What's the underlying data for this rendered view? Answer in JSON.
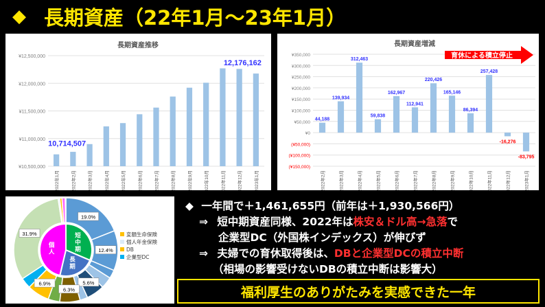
{
  "page": {
    "title_marker": "◆",
    "title": "長期資産（22年1月～23年1月）",
    "footer": "福利厚生のありがたみを実感できた一年"
  },
  "bullets": {
    "main_marker": "◆",
    "main": "一年間で＋1,461,655円（前年は＋1,930,566円）",
    "sub1_marker": "⇒",
    "sub1_line1_a": "短中期資産同様、2022年は",
    "sub1_line1_red": "株安＆ドル高→急落",
    "sub1_line1_b": "で",
    "sub1_line2": "企業型DC（外国株インデックス）が伸びず",
    "sub2_marker": "⇒",
    "sub2_line1_a": "夫婦での育休取得後は、",
    "sub2_line1_red": "DBと企業型DCの積立中断",
    "sub2_line2": "（相場の影響受けないDBの積立中断は影響大）"
  },
  "colors": {
    "bar": "#9dc3e6",
    "label_blue": "#3333ff",
    "label_red": "#ff0000",
    "arrow_red": "#ff0000",
    "title_yellow": "#ffe600",
    "pie_outer": [
      "#5b9bd5",
      "#5b9bd5",
      "#5b9bd5",
      "#9dc3e6",
      "#1f4e79",
      "#9dc3e6",
      "#7f6000",
      "#70ad47",
      "#ffc000",
      "#00b0f0",
      "#c5e0b4",
      "#ddebf7",
      "#ffc000",
      "#ff66ff",
      "#000000"
    ],
    "pie_inner": [
      "#00b050",
      "#4472c4",
      "#ff00ff"
    ]
  },
  "chart_data": [
    {
      "type": "bar",
      "title": "長期資産推移",
      "categories": [
        "2022年1月",
        "2022年2月",
        "2022年3月",
        "2022年4月",
        "2022年5月",
        "2022年6月",
        "2022年7月",
        "2022年8月",
        "2022年9月",
        "2022年10月",
        "2022年11月",
        "2022年12月",
        "2023年1月"
      ],
      "values": [
        10714507,
        10760000,
        10900000,
        11220000,
        11280000,
        11440000,
        11560000,
        11760000,
        11920000,
        12010000,
        12270000,
        12260000,
        12176162
      ],
      "data_labels": [
        {
          "index": 0,
          "text": "10,714,507"
        },
        {
          "index": 12,
          "text": "12,176,162"
        }
      ],
      "y_ticks": [
        "¥12,500,000",
        "¥12,000,000",
        "¥11,500,000",
        "¥11,000,000",
        "¥10,500,000"
      ],
      "y_tick_values": [
        12500000,
        12000000,
        11500000,
        11000000,
        10500000
      ],
      "ylim": [
        10500000,
        12500000
      ],
      "grid": true
    },
    {
      "type": "bar",
      "title": "長期資産増減",
      "categories": [
        "2022年2月",
        "2022年3月",
        "2022年4月",
        "2022年5月",
        "2022年6月",
        "2022年7月",
        "2022年8月",
        "2022年9月",
        "2022年10月",
        "2022年11月",
        "2022年12月",
        "2023年1月"
      ],
      "values": [
        44188,
        139934,
        312463,
        59838,
        162967,
        112941,
        220426,
        165146,
        86394,
        257428,
        -16276,
        -83795
      ],
      "labels": [
        "44,188",
        "139,934",
        "312,463",
        "59,838",
        "162,967",
        "112,941",
        "220,426",
        "165,146",
        "86,394",
        "257,428",
        "-16,276",
        "-83,795"
      ],
      "y_ticks": [
        "¥350,000",
        "¥300,000",
        "¥250,000",
        "¥200,000",
        "¥150,000",
        "¥100,000",
        "¥50,000",
        "¥0",
        "(¥50,000)",
        "(¥100,000)",
        "(¥150,000)"
      ],
      "y_tick_values": [
        350000,
        300000,
        250000,
        200000,
        150000,
        100000,
        50000,
        0,
        -50000,
        -100000,
        -150000
      ],
      "ylim": [
        -150000,
        350000
      ],
      "annotation": "育休による積立停止",
      "grid": true
    },
    {
      "type": "pie",
      "title": "",
      "outer_slices": [
        19.0,
        12.4,
        2.6,
        3.6,
        5.6,
        2.4,
        6.3,
        3.6,
        6.9,
        3.3,
        31.9,
        0.5,
        0.7,
        1.0,
        0.2
      ],
      "outer_labels": [
        {
          "index": 0,
          "text": "19.0%"
        },
        {
          "index": 1,
          "text": "12.4%"
        },
        {
          "index": 4,
          "text": "5.6%"
        },
        {
          "index": 6,
          "text": "6.3%"
        },
        {
          "index": 8,
          "text": "6.9%"
        },
        {
          "index": 10,
          "text": "31.9%"
        }
      ],
      "inner_slices": [
        31.4,
        22.3,
        46.3
      ],
      "inner_labels": [
        "短中期",
        "長期",
        "個人"
      ],
      "legend": [
        {
          "label": "変額生命保険",
          "color": "#ffc000"
        },
        {
          "label": "個人年金保険",
          "color": "#ddebf7"
        },
        {
          "label": "DB",
          "color": "#ffc000"
        },
        {
          "label": "企業型DC",
          "color": "#00b0f0"
        }
      ]
    }
  ]
}
